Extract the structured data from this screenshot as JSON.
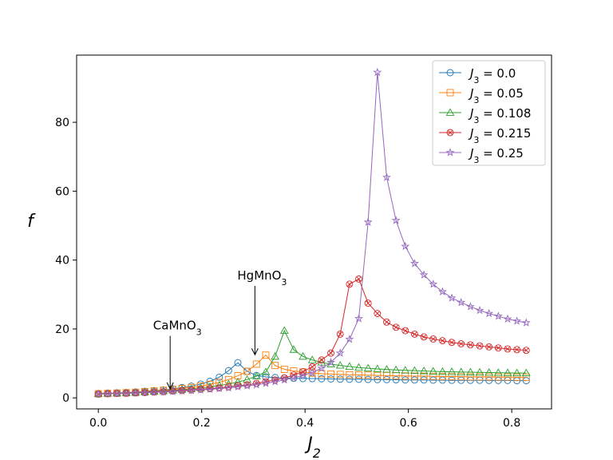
{
  "chart_data": {
    "type": "line",
    "title": "",
    "xlabel": "J",
    "xlabel_sub": "2",
    "ylabel": "f",
    "xlim": [
      -0.042,
      0.877
    ],
    "ylim": [
      -3.2,
      99.5
    ],
    "xticks": [
      0.0,
      0.2,
      0.4,
      0.6,
      0.8
    ],
    "xtick_labels": [
      "0.0",
      "0.2",
      "0.4",
      "0.6",
      "0.8"
    ],
    "yticks": [
      0,
      20,
      40,
      60,
      80
    ],
    "ytick_labels": [
      "0",
      "20",
      "40",
      "60",
      "80"
    ],
    "grid": false,
    "legend_position": "top-right",
    "series": [
      {
        "name": "J3=0.0",
        "label_prefix": "J",
        "label_sub": "3",
        "label_value": "= 0.0",
        "color": "#1f77b4",
        "marker": "circle",
        "x": [
          0.0,
          0.018,
          0.036,
          0.054,
          0.072,
          0.09,
          0.108,
          0.126,
          0.144,
          0.162,
          0.18,
          0.198,
          0.216,
          0.234,
          0.252,
          0.27,
          0.288,
          0.306,
          0.324,
          0.342,
          0.36,
          0.378,
          0.396,
          0.414,
          0.432,
          0.45,
          0.468,
          0.486,
          0.504,
          0.522,
          0.54,
          0.558,
          0.576,
          0.594,
          0.612,
          0.63,
          0.648,
          0.666,
          0.684,
          0.702,
          0.72,
          0.738,
          0.756,
          0.774,
          0.792,
          0.81,
          0.828
        ],
        "y": [
          1.2,
          1.3,
          1.4,
          1.5,
          1.7,
          1.9,
          2.1,
          2.3,
          2.6,
          3.0,
          3.4,
          4.0,
          4.8,
          6.0,
          7.9,
          10.2,
          7.7,
          6.5,
          6.1,
          5.9,
          5.8,
          5.7,
          5.6,
          5.6,
          5.55,
          5.5,
          5.45,
          5.4,
          5.4,
          5.35,
          5.3,
          5.3,
          5.25,
          5.2,
          5.2,
          5.2,
          5.15,
          5.15,
          5.1,
          5.1,
          5.1,
          5.1,
          5.05,
          5.05,
          5.05,
          5.0,
          5.0
        ]
      },
      {
        "name": "J3=0.05",
        "label_prefix": "J",
        "label_sub": "3",
        "label_value": "= 0.05",
        "color": "#ff7f0e",
        "marker": "square",
        "x": [
          0.0,
          0.018,
          0.036,
          0.054,
          0.072,
          0.09,
          0.108,
          0.126,
          0.144,
          0.162,
          0.18,
          0.198,
          0.216,
          0.234,
          0.252,
          0.27,
          0.288,
          0.306,
          0.324,
          0.342,
          0.36,
          0.378,
          0.396,
          0.414,
          0.432,
          0.45,
          0.468,
          0.486,
          0.504,
          0.522,
          0.54,
          0.558,
          0.576,
          0.594,
          0.612,
          0.63,
          0.648,
          0.666,
          0.684,
          0.702,
          0.72,
          0.738,
          0.756,
          0.774,
          0.792,
          0.81,
          0.828
        ],
        "y": [
          1.2,
          1.3,
          1.4,
          1.5,
          1.6,
          1.8,
          2.0,
          2.2,
          2.4,
          2.7,
          3.0,
          3.4,
          3.9,
          4.5,
          5.3,
          6.4,
          7.7,
          9.8,
          12.4,
          9.4,
          8.3,
          7.8,
          7.5,
          7.2,
          7.0,
          6.9,
          6.8,
          6.7,
          6.65,
          6.6,
          6.5,
          6.45,
          6.4,
          6.35,
          6.3,
          6.3,
          6.25,
          6.2,
          6.2,
          6.15,
          6.1,
          6.1,
          6.1,
          6.05,
          6.05,
          6.0,
          6.0
        ]
      },
      {
        "name": "J3=0.108",
        "label_prefix": "J",
        "label_sub": "3",
        "label_value": "= 0.108",
        "color": "#2ca02c",
        "marker": "triangle",
        "x": [
          0.0,
          0.018,
          0.036,
          0.054,
          0.072,
          0.09,
          0.108,
          0.126,
          0.144,
          0.162,
          0.18,
          0.198,
          0.216,
          0.234,
          0.252,
          0.27,
          0.288,
          0.306,
          0.324,
          0.342,
          0.36,
          0.378,
          0.396,
          0.414,
          0.432,
          0.45,
          0.468,
          0.486,
          0.504,
          0.522,
          0.54,
          0.558,
          0.576,
          0.594,
          0.612,
          0.63,
          0.648,
          0.666,
          0.684,
          0.702,
          0.72,
          0.738,
          0.756,
          0.774,
          0.792,
          0.81,
          0.828
        ],
        "y": [
          1.2,
          1.3,
          1.35,
          1.45,
          1.55,
          1.7,
          1.85,
          2.0,
          2.2,
          2.4,
          2.6,
          2.9,
          3.2,
          3.6,
          4.0,
          4.6,
          5.3,
          6.3,
          7.5,
          12.0,
          19.5,
          14.0,
          12.0,
          11.0,
          10.3,
          9.8,
          9.4,
          9.1,
          8.8,
          8.6,
          8.4,
          8.25,
          8.1,
          8.0,
          7.9,
          7.8,
          7.7,
          7.6,
          7.55,
          7.5,
          7.45,
          7.4,
          7.35,
          7.3,
          7.25,
          7.2,
          7.2
        ]
      },
      {
        "name": "J3=0.215",
        "label_prefix": "J",
        "label_sub": "3",
        "label_value": "= 0.215",
        "color": "#d62728",
        "marker": "xcircle",
        "x": [
          0.0,
          0.018,
          0.036,
          0.054,
          0.072,
          0.09,
          0.108,
          0.126,
          0.144,
          0.162,
          0.18,
          0.198,
          0.216,
          0.234,
          0.252,
          0.27,
          0.288,
          0.306,
          0.324,
          0.342,
          0.36,
          0.378,
          0.396,
          0.414,
          0.432,
          0.45,
          0.468,
          0.486,
          0.504,
          0.522,
          0.54,
          0.558,
          0.576,
          0.594,
          0.612,
          0.63,
          0.648,
          0.666,
          0.684,
          0.702,
          0.72,
          0.738,
          0.756,
          0.774,
          0.792,
          0.81,
          0.828
        ],
        "y": [
          1.1,
          1.2,
          1.3,
          1.35,
          1.45,
          1.55,
          1.7,
          1.8,
          2.0,
          2.15,
          2.3,
          2.5,
          2.7,
          2.9,
          3.2,
          3.5,
          3.8,
          4.2,
          4.7,
          5.2,
          5.8,
          6.6,
          7.6,
          9.0,
          11.0,
          13.0,
          18.5,
          33.0,
          34.5,
          27.5,
          24.5,
          22.0,
          20.5,
          19.5,
          18.5,
          17.7,
          17.1,
          16.6,
          16.1,
          15.7,
          15.4,
          15.1,
          14.8,
          14.5,
          14.2,
          14.0,
          13.8
        ]
      },
      {
        "name": "J3=0.25",
        "label_prefix": "J",
        "label_sub": "3",
        "label_value": "= 0.25",
        "color": "#9467bd",
        "marker": "star",
        "x": [
          0.0,
          0.018,
          0.036,
          0.054,
          0.072,
          0.09,
          0.108,
          0.126,
          0.144,
          0.162,
          0.18,
          0.198,
          0.216,
          0.234,
          0.252,
          0.27,
          0.288,
          0.306,
          0.324,
          0.342,
          0.36,
          0.378,
          0.396,
          0.414,
          0.432,
          0.45,
          0.468,
          0.486,
          0.504,
          0.522,
          0.54,
          0.558,
          0.576,
          0.594,
          0.612,
          0.63,
          0.648,
          0.666,
          0.684,
          0.702,
          0.72,
          0.738,
          0.756,
          0.774,
          0.792,
          0.81,
          0.828
        ],
        "y": [
          1.1,
          1.15,
          1.25,
          1.3,
          1.4,
          1.5,
          1.6,
          1.7,
          1.85,
          2.0,
          2.15,
          2.3,
          2.5,
          2.7,
          2.9,
          3.2,
          3.5,
          3.8,
          4.2,
          4.7,
          5.2,
          5.8,
          6.5,
          7.4,
          8.6,
          10.3,
          13.0,
          17.0,
          23.0,
          51.0,
          94.5,
          64.0,
          51.5,
          44.0,
          39.0,
          35.7,
          33.0,
          30.8,
          29.0,
          27.7,
          26.5,
          25.4,
          24.5,
          23.7,
          22.9,
          22.3,
          21.8
        ]
      }
    ],
    "annotations": [
      {
        "name": "CaMnO3",
        "label_main": "CaMnO",
        "label_sub": "3",
        "x": 0.139,
        "y_tip": 2.6,
        "y_tail": 18.0
      },
      {
        "name": "HgMnO3",
        "label_main": "HgMnO",
        "label_sub": "3",
        "x": 0.303,
        "y_tip": 12.5,
        "y_tail": 32.5
      }
    ]
  }
}
